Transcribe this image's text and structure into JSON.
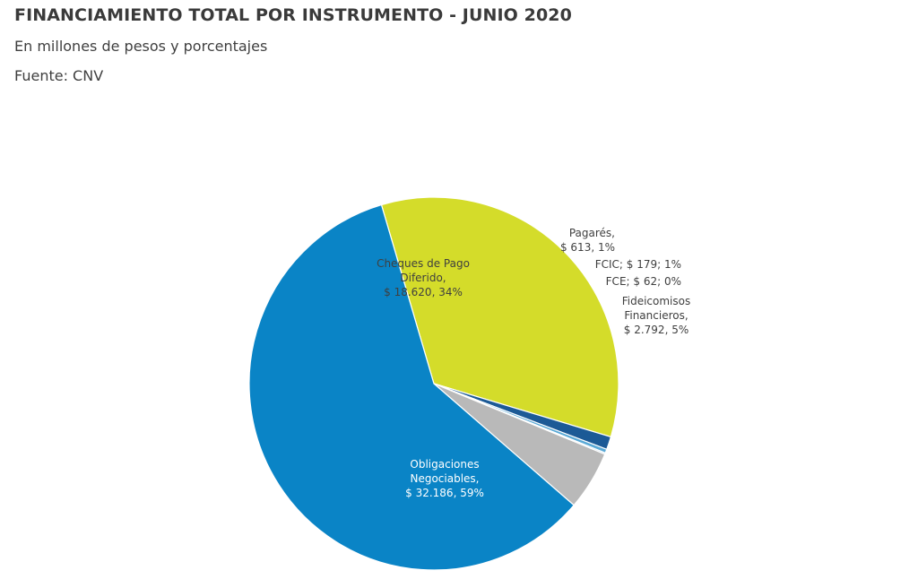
{
  "header": {
    "title": "FINANCIAMIENTO TOTAL POR INSTRUMENTO - JUNIO 2020",
    "subtitle": "En millones de pesos y porcentajes",
    "source": "Fuente: CNV"
  },
  "chart_data": {
    "type": "pie",
    "title": "FINANCIAMIENTO TOTAL POR INSTRUMENTO - JUNIO 2020",
    "subtitle": "En millones de pesos y porcentajes",
    "unit": "millones de pesos",
    "slices": [
      {
        "name": "Cheques de Pago Diferido",
        "value": 18620,
        "percent": 34,
        "color": "#d4dc2a",
        "label_lines": [
          "Cheques de Pago",
          "Diferido,",
          "$ 18.620, 34%"
        ],
        "label_color": "#3f3f3f"
      },
      {
        "name": "Pagarés",
        "value": 613,
        "percent": 1,
        "color": "#1c5a96",
        "label_lines": [
          "Pagarés,",
          "$ 613, 1%"
        ],
        "label_color": "#3f3f3f"
      },
      {
        "name": "FCIC",
        "value": 179,
        "percent": 1,
        "color": "#5aa9d6",
        "label_lines": [
          "FCIC; $ 179; 1%"
        ],
        "label_color": "#3f3f3f"
      },
      {
        "name": "FCE",
        "value": 62,
        "percent": 0,
        "color": "#9fc5e0",
        "label_lines": [
          "FCE; $ 62; 0%"
        ],
        "label_color": "#3f3f3f"
      },
      {
        "name": "Fideicomisos Financieros",
        "value": 2792,
        "percent": 5,
        "color": "#b9b9b9",
        "label_lines": [
          "Fideicomisos",
          "Financieros,",
          "$ 2.792, 5%"
        ],
        "label_color": "#3f3f3f"
      },
      {
        "name": "Obligaciones Negociables",
        "value": 32186,
        "percent": 59,
        "color": "#0a84c6",
        "label_lines": [
          "Obligaciones",
          "Negociables,",
          "$ 32.186, 59%"
        ],
        "label_color": "#ffffff"
      }
    ]
  }
}
